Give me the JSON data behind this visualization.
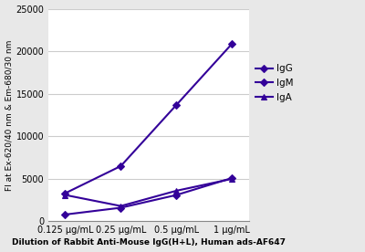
{
  "x_labels": [
    "0.125 μg/mL",
    "0.25 μg/mL",
    "0.5 μg/mL",
    "1 μg/mL"
  ],
  "x_positions": [
    0,
    1,
    2,
    3
  ],
  "series": {
    "IgG": [
      3300,
      6500,
      13700,
      20900
    ],
    "IgM": [
      800,
      1600,
      3100,
      5100
    ],
    "IgA": [
      3100,
      1800,
      3600,
      5000
    ]
  },
  "markers": {
    "IgG": "D",
    "IgM": "D",
    "IgA": "^"
  },
  "line_color": "#330099",
  "ylabel": "FI at Ex-620/40 nm & Em-680/30 nm",
  "xlabel": "Dilution of Rabbit Anti-Mouse IgG(H+L), Human ads-AF647",
  "ylim": [
    0,
    25000
  ],
  "yticks": [
    0,
    5000,
    10000,
    15000,
    20000,
    25000
  ],
  "axis_fontsize": 6.5,
  "legend_fontsize": 7.5,
  "tick_fontsize": 7,
  "xlabel_fontsize": 6.5,
  "background_color": "#e8e8e8",
  "plot_bg_color": "#ffffff",
  "grid_color": "#cccccc"
}
